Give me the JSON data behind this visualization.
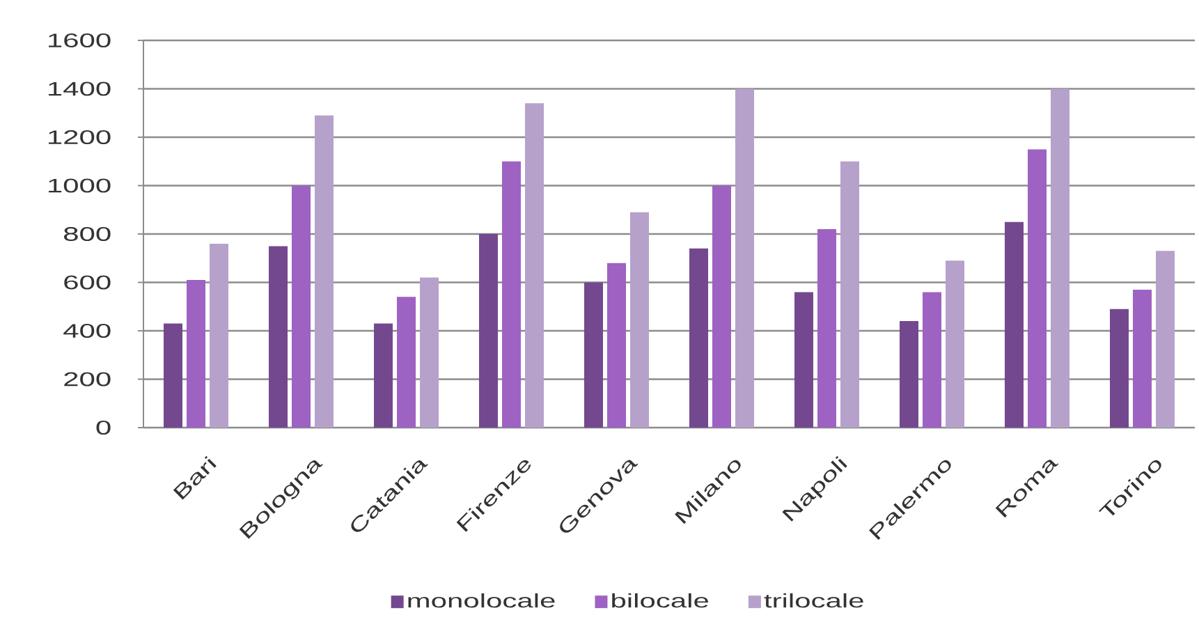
{
  "chart_data": {
    "type": "bar",
    "categories": [
      "Bari",
      "Bologna",
      "Catania",
      "Firenze",
      "Genova",
      "Milano",
      "Napoli",
      "Palermo",
      "Roma",
      "Torino"
    ],
    "series": [
      {
        "name": "monolocale",
        "color": "#74488f",
        "values": [
          430,
          750,
          430,
          800,
          600,
          740,
          560,
          440,
          850,
          490
        ]
      },
      {
        "name": "bilocale",
        "color": "#9e62c2",
        "values": [
          610,
          1000,
          540,
          1100,
          680,
          1000,
          820,
          560,
          1150,
          570
        ]
      },
      {
        "name": "trilocale",
        "color": "#b6a1cb",
        "values": [
          760,
          1290,
          620,
          1340,
          890,
          1400,
          1100,
          690,
          1400,
          730
        ]
      }
    ],
    "ylim": [
      0,
      1600
    ],
    "yticks": [
      0,
      200,
      400,
      600,
      800,
      1000,
      1200,
      1400,
      1600
    ],
    "grid": "y",
    "legend": "bottom"
  }
}
